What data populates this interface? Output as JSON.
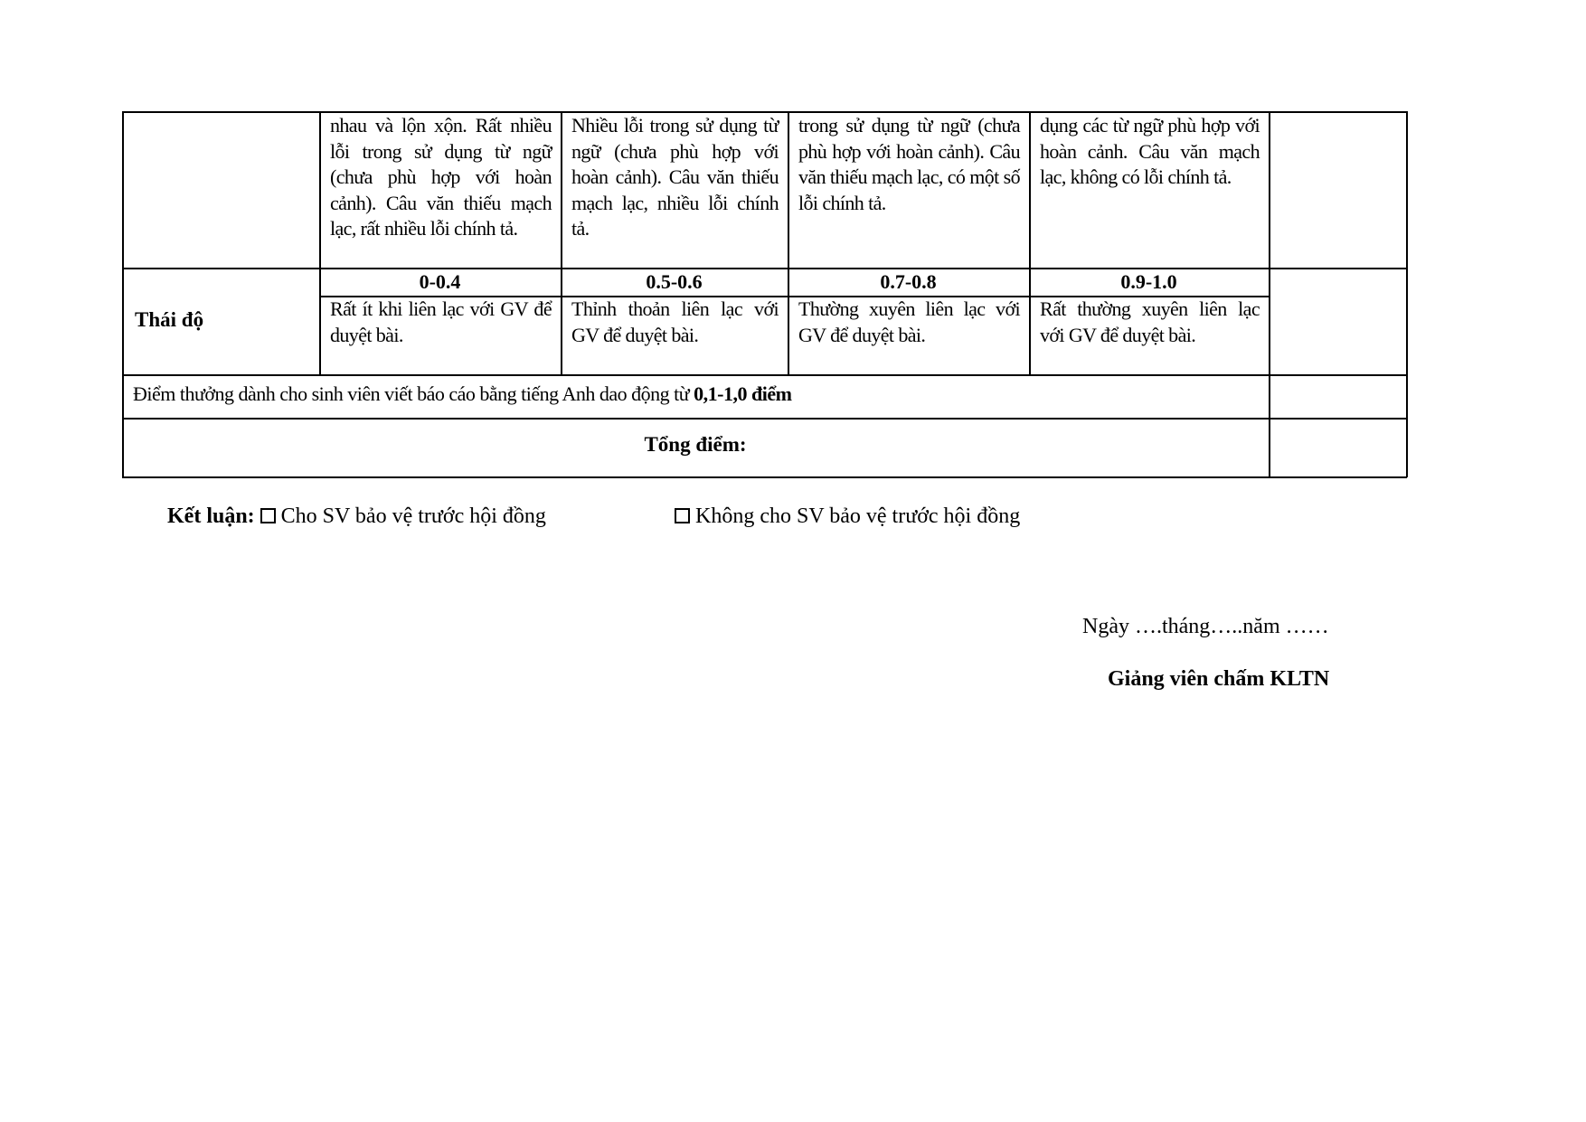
{
  "table": {
    "row_continued": {
      "cells": [
        "nhau và lộn xộn. Rất nhiều lỗi trong sử dụng từ ngữ (chưa phù hợp với hoàn cảnh). Câu văn thiếu mạch lạc, rất nhiều lỗi chính tả.",
        "Nhiều lỗi trong sử dụng từ ngữ (chưa phù hợp với hoàn cảnh). Câu văn thiếu mạch lạc, nhiều lỗi chính tả.",
        "trong sử dụng từ ngữ (chưa phù hợp với hoàn cảnh). Câu văn thiếu mạch lạc, có một số lỗi chính tả.",
        "dụng các từ ngữ phù hợp với hoàn cảnh. Câu văn mạch lạc, không có lỗi chính tả."
      ]
    },
    "row_attitude": {
      "label": "Thái độ",
      "ranges": [
        "0-0.4",
        "0.5-0.6",
        "0.7-0.8",
        "0.9-1.0"
      ],
      "cells": [
        "Rất ít khi liên lạc với GV để duyệt bài.",
        "Thỉnh thoản liên lạc với GV để duyệt bài.",
        "Thường xuyên liên lạc với GV để duyệt bài.",
        "Rất thường xuyên liên lạc với GV để duyệt bài."
      ]
    },
    "bonus": {
      "text": "Điểm thưởng dành cho sinh viên viết báo cáo bằng tiếng Anh dao động từ ",
      "bold": "0,1-1,0 điểm"
    },
    "total_label": "Tổng điểm:"
  },
  "conclusion": {
    "label": "Kết luận:",
    "option_yes": "Cho SV bảo vệ trước hội đồng",
    "option_no": "Không cho SV bảo vệ trước hội đồng"
  },
  "signature": {
    "date_line": "Ngày ….tháng…..năm ……",
    "title": "Giảng viên chấm KLTN"
  }
}
